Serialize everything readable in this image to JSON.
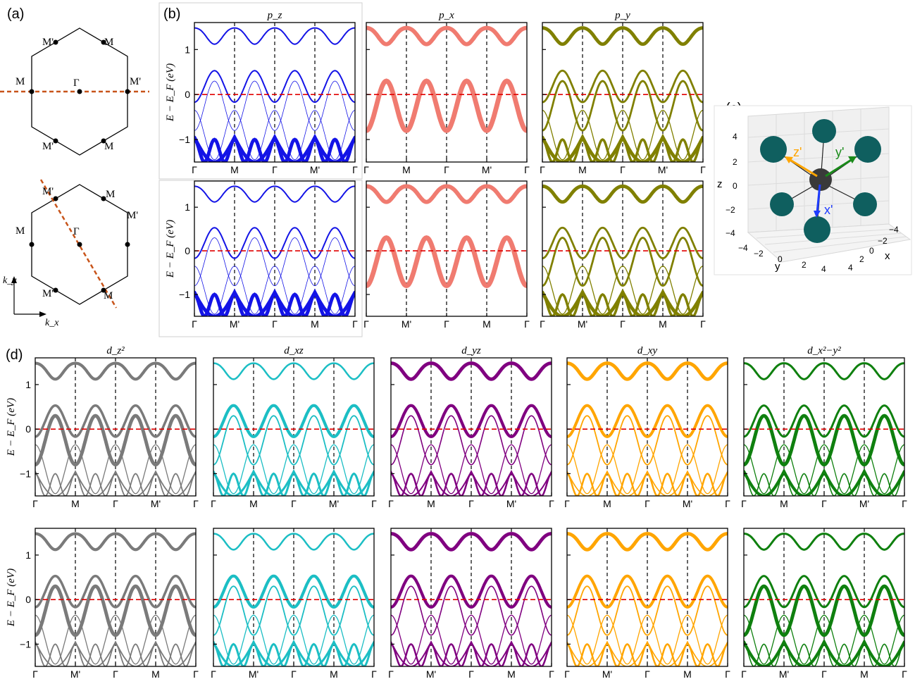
{
  "figure": {
    "panel_labels": {
      "a": "(a)",
      "b": "(b)",
      "c": "(c)",
      "d": "(d)"
    },
    "energy_axis_label": "E − E_F (eV)",
    "y_ticks": [
      "−1",
      "0",
      "1"
    ]
  },
  "colors": {
    "pz": "#1414e6",
    "px": "#f07b70",
    "py": "#808000",
    "dz2": "#7a7a7a",
    "dxz": "#1cbec4",
    "dyz": "#800080",
    "dxy": "#ffa500",
    "dx2y2": "#0f800f",
    "fermi": "#e00000",
    "bz_path": "#c8541a",
    "atom": "#0f5f5f",
    "center_atom": "#3a3a3a",
    "arrow_x": "#1e3cff",
    "arrow_y": "#1a8a1a",
    "arrow_z": "#ffa500"
  },
  "panel_a": {
    "labels_top": [
      "M'",
      "M",
      "M",
      "Γ",
      "M'",
      "M'",
      "M"
    ],
    "labels_bottom": [
      "M'",
      "M",
      "M'",
      "M",
      "Γ",
      "M'",
      "M"
    ],
    "axes": {
      "ky": "k_y",
      "kx": "k_x"
    }
  },
  "panel_c": {
    "axis_labels": {
      "x": "x",
      "y": "y",
      "z": "z"
    },
    "arrow_labels": {
      "x": "x'",
      "y": "y'",
      "z": "z'"
    },
    "z_ticks": [
      "4",
      "2",
      "0",
      "−2",
      "−4"
    ],
    "y_ticks": [
      "−4",
      "−2",
      "0",
      "2",
      "4"
    ],
    "x_ticks": [
      "−4",
      "−2",
      "0",
      "2",
      "4"
    ]
  },
  "chart_data": [
    {
      "type": "line",
      "orbital": "p_z",
      "row": "b-top",
      "title": "p_z",
      "ylabel": "E − E_F (eV)",
      "ylim": [
        -1.5,
        1.6
      ],
      "x_ticks": [
        "Γ",
        "M",
        "Γ",
        "M'",
        "Γ"
      ]
    },
    {
      "type": "line",
      "orbital": "p_x",
      "row": "b-top",
      "title": "p_x",
      "ylim": [
        -1.5,
        1.6
      ],
      "x_ticks": [
        "Γ",
        "M",
        "Γ",
        "M'",
        "Γ"
      ]
    },
    {
      "type": "line",
      "orbital": "p_y",
      "row": "b-top",
      "title": "p_y",
      "ylim": [
        -1.5,
        1.6
      ],
      "x_ticks": [
        "Γ",
        "M",
        "Γ",
        "M'",
        "Γ"
      ]
    },
    {
      "type": "line",
      "orbital": "p_z",
      "row": "b-bottom",
      "title": "",
      "ylabel": "E − E_F (eV)",
      "ylim": [
        -1.5,
        1.6
      ],
      "x_ticks": [
        "Γ",
        "M'",
        "Γ",
        "M",
        "Γ"
      ]
    },
    {
      "type": "line",
      "orbital": "p_x",
      "row": "b-bottom",
      "title": "",
      "ylim": [
        -1.5,
        1.6
      ],
      "x_ticks": [
        "Γ",
        "M'",
        "Γ",
        "M",
        "Γ"
      ]
    },
    {
      "type": "line",
      "orbital": "p_y",
      "row": "b-bottom",
      "title": "",
      "ylim": [
        -1.5,
        1.6
      ],
      "x_ticks": [
        "Γ",
        "M'",
        "Γ",
        "M",
        "Γ"
      ]
    },
    {
      "type": "line",
      "orbital": "d_z2",
      "row": "d-top",
      "title": "d_z²",
      "ylabel": "E − E_F (eV)",
      "ylim": [
        -1.5,
        1.6
      ],
      "x_ticks": [
        "Γ",
        "M",
        "Γ",
        "M'",
        "Γ"
      ]
    },
    {
      "type": "line",
      "orbital": "d_xz",
      "row": "d-top",
      "title": "d_xz",
      "ylim": [
        -1.5,
        1.6
      ],
      "x_ticks": [
        "Γ",
        "M",
        "Γ",
        "M'",
        "Γ"
      ]
    },
    {
      "type": "line",
      "orbital": "d_yz",
      "row": "d-top",
      "title": "d_yz",
      "ylim": [
        -1.5,
        1.6
      ],
      "x_ticks": [
        "Γ",
        "M",
        "Γ",
        "M'",
        "Γ"
      ]
    },
    {
      "type": "line",
      "orbital": "d_xy",
      "row": "d-top",
      "title": "d_xy",
      "ylim": [
        -1.5,
        1.6
      ],
      "x_ticks": [
        "Γ",
        "M",
        "Γ",
        "M'",
        "Γ"
      ]
    },
    {
      "type": "line",
      "orbital": "d_x2-y2",
      "row": "d-top",
      "title": "d_x²−y²",
      "ylim": [
        -1.5,
        1.6
      ],
      "x_ticks": [
        "Γ",
        "M",
        "Γ",
        "M'",
        "Γ"
      ]
    },
    {
      "type": "line",
      "orbital": "d_z2",
      "row": "d-bottom",
      "title": "",
      "ylabel": "E − E_F (eV)",
      "ylim": [
        -1.5,
        1.6
      ],
      "x_ticks": [
        "Γ",
        "M'",
        "Γ",
        "M",
        "Γ"
      ]
    },
    {
      "type": "line",
      "orbital": "d_xz",
      "row": "d-bottom",
      "title": "",
      "ylim": [
        -1.5,
        1.6
      ],
      "x_ticks": [
        "Γ",
        "M'",
        "Γ",
        "M",
        "Γ"
      ]
    },
    {
      "type": "line",
      "orbital": "d_yz",
      "row": "d-bottom",
      "title": "",
      "ylim": [
        -1.5,
        1.6
      ],
      "x_ticks": [
        "Γ",
        "M'",
        "Γ",
        "M",
        "Γ"
      ]
    },
    {
      "type": "line",
      "orbital": "d_xy",
      "row": "d-bottom",
      "title": "",
      "ylim": [
        -1.5,
        1.6
      ],
      "x_ticks": [
        "Γ",
        "M'",
        "Γ",
        "M",
        "Γ"
      ]
    },
    {
      "type": "line",
      "orbital": "d_x2-y2",
      "row": "d-bottom",
      "title": "",
      "ylim": [
        -1.5,
        1.6
      ],
      "x_ticks": [
        "Γ",
        "M'",
        "Γ",
        "M",
        "Γ"
      ]
    }
  ]
}
